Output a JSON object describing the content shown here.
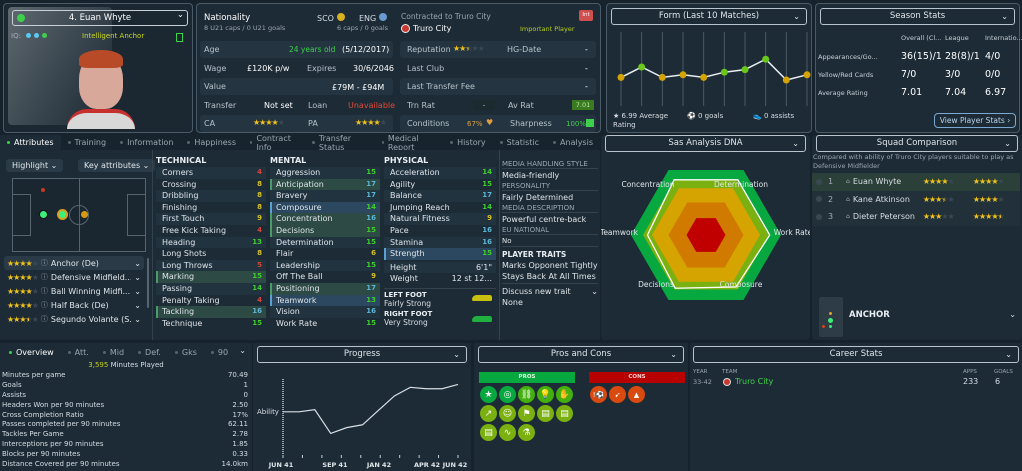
{
  "player": {
    "name": "4. Euan Whyte",
    "iq_label": "IQ:",
    "role_desc": "Intelligent Anchor"
  },
  "info": {
    "nationality_label": "Nationality",
    "nat1": "SCO",
    "nat2": "ENG",
    "u21": "8 U21 caps / 0 U21 goals",
    "caps": "6 caps / 0 goals",
    "age_label": "Age",
    "age": "24 years old",
    "dob": "(5/12/2017)",
    "wage_label": "Wage",
    "wage": "£120K p/w",
    "expires_label": "Expires",
    "expires": "30/6/2046",
    "value_label": "Value",
    "value": "£79M - £94M",
    "transfer_label": "Transfer",
    "transfer": "Not set",
    "loan_label": "Loan",
    "loan": "Unavailable",
    "ca_label": "CA",
    "pa_label": "PA",
    "ca_stars": 4,
    "pa_stars": 4,
    "contracted": "Contracted to Truro City",
    "club": "Truro City",
    "status": "Important Player",
    "int_badge": "Int",
    "reputation_label": "Reputation",
    "reputation_stars": 2.5,
    "hg_label": "HG-Date",
    "hg": "-",
    "last_club_label": "Last Club",
    "last_club": "-",
    "last_fee_label": "Last Transfer Fee",
    "last_fee": "-",
    "trn_label": "Trn Rat",
    "trn": "-",
    "av_label": "Av Rat",
    "av": "7.01",
    "cond_label": "Conditions",
    "cond": "67%",
    "sharp_label": "Sharpness",
    "sharp": "100%"
  },
  "form": {
    "title": "Form (Last 10 Matches)",
    "avg": "6.99 Average Rating",
    "goals": "0 goals",
    "assists": "0 assists",
    "chart_data": {
      "type": "line",
      "values": [
        6.8,
        7.2,
        6.8,
        6.9,
        6.8,
        7.0,
        7.1,
        7.5,
        6.7,
        6.9
      ],
      "colors": [
        "#d6a400",
        "#6ac81a",
        "#d6a400",
        "#d6a400",
        "#d6a400",
        "#6ac81a",
        "#6ac81a",
        "#6ac81a",
        "#d6a400",
        "#d6a400"
      ]
    }
  },
  "season": {
    "title": "Season Stats",
    "cols": [
      "Overall (Cl...",
      "League",
      "Internatio..."
    ],
    "rows": [
      {
        "label": "Appearances/Go...",
        "v": [
          "36(15)/1",
          "28(8)/1",
          "4/0"
        ]
      },
      {
        "label": "Yellow/Red Cards",
        "v": [
          "7/0",
          "3/0",
          "0/0"
        ]
      },
      {
        "label": "Average Rating",
        "v": [
          "7.01",
          "7.04",
          "6.97"
        ]
      }
    ],
    "button": "View Player Stats ›"
  },
  "tabs": [
    "Attributes",
    "Training",
    "Information",
    "Happiness",
    "Contract Info",
    "Transfer Status",
    "Medical Report",
    "History",
    "Statistic",
    "Analysis"
  ],
  "controls": {
    "highlight": "Highlight ⌄",
    "key": "Key attributes ⌄"
  },
  "roles": [
    {
      "stars": 4,
      "name": "Anchor (De)"
    },
    {
      "stars": 4,
      "name": "Defensive Midfield..."
    },
    {
      "stars": 4,
      "name": "Ball Winning Midfi..."
    },
    {
      "stars": 4,
      "name": "Half Back (De)"
    },
    {
      "stars": 3.5,
      "name": "Segundo Volante (S..."
    }
  ],
  "technical": {
    "title": "TECHNICAL",
    "items": [
      [
        "Corners",
        4,
        ""
      ],
      [
        "Crossing",
        8,
        ""
      ],
      [
        "Dribbling",
        8,
        ""
      ],
      [
        "Finishing",
        8,
        ""
      ],
      [
        "First Touch",
        9,
        ""
      ],
      [
        "Free Kick Taking",
        4,
        ""
      ],
      [
        "Heading",
        13,
        ""
      ],
      [
        "Long Shots",
        8,
        ""
      ],
      [
        "Long Throws",
        5,
        ""
      ],
      [
        "Marking",
        15,
        "g"
      ],
      [
        "Passing",
        14,
        ""
      ],
      [
        "Penalty Taking",
        4,
        ""
      ],
      [
        "Tackling",
        16,
        "g"
      ],
      [
        "Technique",
        15,
        ""
      ]
    ]
  },
  "mental": {
    "title": "MENTAL",
    "items": [
      [
        "Aggression",
        15,
        ""
      ],
      [
        "Anticipation",
        17,
        "g"
      ],
      [
        "Bravery",
        17,
        ""
      ],
      [
        "Composure",
        14,
        "b"
      ],
      [
        "Concentration",
        16,
        "g"
      ],
      [
        "Decisions",
        15,
        "g"
      ],
      [
        "Determination",
        15,
        ""
      ],
      [
        "Flair",
        6,
        ""
      ],
      [
        "Leadership",
        15,
        ""
      ],
      [
        "Off The Ball",
        9,
        ""
      ],
      [
        "Positioning",
        17,
        "g"
      ],
      [
        "Teamwork",
        13,
        "b"
      ],
      [
        "Vision",
        16,
        ""
      ],
      [
        "Work Rate",
        15,
        ""
      ]
    ]
  },
  "physical": {
    "title": "PHYSICAL",
    "items": [
      [
        "Acceleration",
        14,
        ""
      ],
      [
        "Agility",
        15,
        ""
      ],
      [
        "Balance",
        17,
        ""
      ],
      [
        "Jumping Reach",
        14,
        ""
      ],
      [
        "Natural Fitness",
        9,
        ""
      ],
      [
        "Pace",
        16,
        ""
      ],
      [
        "Stamina",
        16,
        ""
      ],
      [
        "Strength",
        15,
        "b"
      ]
    ],
    "height_label": "Height",
    "height": "6'1\"",
    "weight_label": "Weight",
    "weight": "12 st 12...",
    "left_foot_label": "LEFT FOOT",
    "left_foot": "Fairly Strong",
    "right_foot_label": "RIGHT FOOT",
    "right_foot": "Very Strong"
  },
  "personal": {
    "media_label": "MEDIA HANDLING STYLE",
    "media": "Media-friendly",
    "personality_label": "PERSONALITY",
    "personality": "Fairly Determined",
    "desc_label": "MEDIA DESCRIPTION",
    "desc": "Powerful centre-back",
    "eu_label": "EU NATIONAL",
    "eu": "No",
    "traits_label": "PLAYER TRAITS",
    "traits": [
      "Marks Opponent Tightly",
      "Stays Back At All Times"
    ],
    "discuss": "Discuss new trait",
    "none": "None"
  },
  "dna": {
    "title": "Sas Analysis DNA",
    "axes": [
      "Determination",
      "Work Rate",
      "Composure",
      "Decisions",
      "Teamwork",
      "Concentration"
    ],
    "values": [
      0.85,
      0.85,
      0.8,
      0.82,
      0.78,
      0.85
    ]
  },
  "squad": {
    "title": "Squad Comparison",
    "note": "Compared with ability of Truro City players suitable to play as Defensive Midfielder",
    "rows": [
      {
        "rank": "1",
        "name": "Euan Whyte",
        "ca": 4,
        "pa": 4
      },
      {
        "rank": "2",
        "name": "Kane Atkinson",
        "ca": 3.5,
        "pa": 4
      },
      {
        "rank": "3",
        "name": "Dieter Peterson",
        "ca": 3,
        "pa": 4.5
      }
    ],
    "role": "ANCHOR"
  },
  "overview": {
    "tabs": [
      "Overview",
      "Att.",
      "Mid",
      "Def.",
      "Gks",
      "90"
    ],
    "minutes": "3,595",
    "minutes_label": "Minutes Played",
    "stats": [
      [
        "Minutes per game",
        "70.49"
      ],
      [
        "Goals",
        "1"
      ],
      [
        "Assists",
        "0"
      ],
      [
        "Headers Won per 90 minutes",
        "2.50"
      ],
      [
        "Cross Completion Ratio",
        "17%"
      ],
      [
        "Passes completed per 90 minutes",
        "62.11"
      ],
      [
        "Tackles Per Game",
        "2.78"
      ],
      [
        "Interceptions per 90 minutes",
        "1.85"
      ],
      [
        "Blocks per 90 minutes",
        "0.33"
      ],
      [
        "Distance Covered per 90 minutes",
        "14.0km"
      ]
    ]
  },
  "progress": {
    "title": "Progress",
    "ylabel": "Ability",
    "xticks": [
      "JUN 41",
      "SEP 41",
      "JAN 42",
      "APR 42",
      "JUN 42"
    ],
    "chart_data": {
      "type": "line",
      "values": [
        60,
        60,
        63,
        30,
        38,
        42,
        62,
        82,
        94,
        92,
        92,
        98
      ]
    }
  },
  "proscons": {
    "title": "Pros and Cons",
    "pros": "PROS",
    "cons": "CONS",
    "pro_icons": [
      "star-icon",
      "target-icon",
      "link-icon",
      "lightbulb-icon",
      "handshake-icon",
      "trend-icon",
      "head-icon",
      "flag-icon",
      "report-icon",
      "report-icon",
      "report-icon",
      "wave-icon",
      "flask-icon"
    ],
    "con_icons": [
      "ball-warning-icon",
      "tackle-icon",
      "cone-icon"
    ]
  },
  "career": {
    "title": "Career Stats",
    "headers": [
      "YEAR",
      "TEAM",
      "APPS",
      "GOALS"
    ],
    "rows": [
      {
        "year": "33-42",
        "team": "Truro City",
        "apps": "233",
        "goals": "6"
      }
    ]
  }
}
